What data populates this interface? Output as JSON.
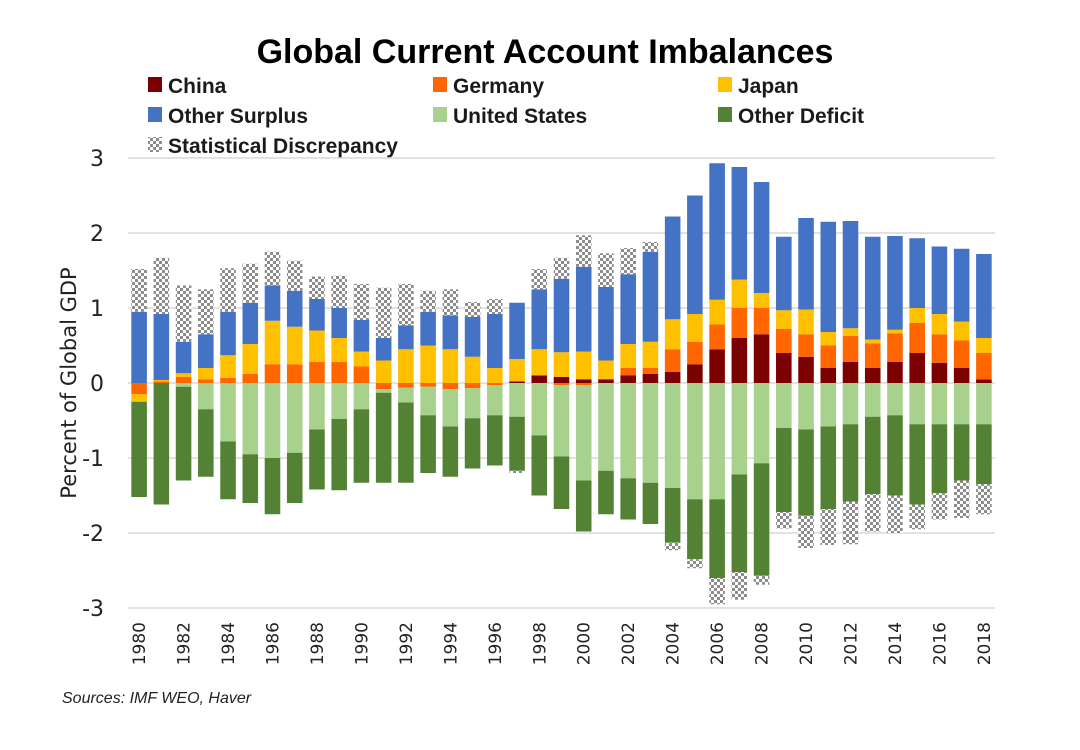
{
  "chart_data": {
    "type": "bar",
    "stacked": true,
    "title": "Global Current Account Imbalances",
    "xlabel": "",
    "ylabel": "Percent of Global GDP",
    "ylim": [
      -3,
      3
    ],
    "yticks": [
      3,
      2,
      1,
      0,
      -1,
      -2,
      -3
    ],
    "grid": true,
    "legend_position": "top",
    "source_note": "Sources: IMF WEO, Haver",
    "categories": [
      1980,
      1981,
      1982,
      1983,
      1984,
      1985,
      1986,
      1987,
      1988,
      1989,
      1990,
      1991,
      1992,
      1993,
      1994,
      1995,
      1996,
      1997,
      1998,
      1999,
      2000,
      2001,
      2002,
      2003,
      2004,
      2005,
      2006,
      2007,
      2008,
      2009,
      2010,
      2011,
      2012,
      2013,
      2014,
      2015,
      2016,
      2017,
      2018
    ],
    "xtick_labels": [
      "1980",
      "1982",
      "1984",
      "1986",
      "1988",
      "1990",
      "1992",
      "1994",
      "1996",
      "1998",
      "2000",
      "2002",
      "2004",
      "2006",
      "2008",
      "2010",
      "2012",
      "2014",
      "2016",
      "2018"
    ],
    "series": [
      {
        "name": "China",
        "color": "#7b0000",
        "values": [
          0,
          0,
          0,
          0,
          0,
          0,
          0,
          0,
          0,
          0,
          0,
          0,
          0,
          0,
          0,
          0,
          0,
          0.02,
          0.1,
          0.08,
          0.05,
          0.05,
          0.1,
          0.12,
          0.15,
          0.25,
          0.45,
          0.6,
          0.65,
          0.4,
          0.35,
          0.2,
          0.28,
          0.2,
          0.28,
          0.4,
          0.27,
          0.2,
          0.05
        ]
      },
      {
        "name": "Germany",
        "color": "#ff6600",
        "values": [
          -0.15,
          0.02,
          0.08,
          0.05,
          0.07,
          0.12,
          0.25,
          0.25,
          0.28,
          0.28,
          0.22,
          -0.08,
          -0.06,
          -0.05,
          -0.08,
          -0.07,
          -0.03,
          0,
          0,
          -0.03,
          -0.03,
          0,
          0.1,
          0.08,
          0.3,
          0.3,
          0.33,
          0.4,
          0.35,
          0.32,
          0.3,
          0.3,
          0.35,
          0.33,
          0.38,
          0.4,
          0.38,
          0.37,
          0.35
        ]
      },
      {
        "name": "Japan",
        "color": "#ffc000",
        "values": [
          -0.1,
          0.02,
          0.05,
          0.15,
          0.3,
          0.4,
          0.58,
          0.5,
          0.42,
          0.32,
          0.2,
          0.3,
          0.45,
          0.5,
          0.45,
          0.35,
          0.2,
          0.3,
          0.35,
          0.33,
          0.37,
          0.25,
          0.32,
          0.35,
          0.4,
          0.37,
          0.33,
          0.38,
          0.2,
          0.25,
          0.33,
          0.18,
          0.1,
          0.05,
          0.05,
          0.2,
          0.27,
          0.25,
          0.2
        ]
      },
      {
        "name": "Other Surplus",
        "color": "#4472c4",
        "values": [
          0.95,
          0.88,
          0.42,
          0.45,
          0.58,
          0.55,
          0.47,
          0.48,
          0.42,
          0.4,
          0.42,
          0.3,
          0.32,
          0.45,
          0.45,
          0.53,
          0.72,
          0.75,
          0.8,
          0.98,
          1.13,
          0.98,
          0.93,
          1.2,
          1.37,
          1.58,
          1.82,
          1.5,
          1.48,
          0.98,
          1.22,
          1.47,
          1.43,
          1.37,
          1.25,
          0.93,
          0.9,
          0.97,
          1.12
        ]
      },
      {
        "name": "United States",
        "color": "#a9d18e",
        "values": [
          0,
          0,
          -0.05,
          -0.35,
          -0.78,
          -0.95,
          -1.0,
          -0.93,
          -0.62,
          -0.48,
          -0.35,
          -0.05,
          -0.2,
          -0.38,
          -0.5,
          -0.4,
          -0.4,
          -0.45,
          -0.7,
          -0.95,
          -1.27,
          -1.17,
          -1.27,
          -1.33,
          -1.4,
          -1.55,
          -1.55,
          -1.22,
          -1.07,
          -0.6,
          -0.62,
          -0.58,
          -0.55,
          -0.45,
          -0.43,
          -0.55,
          -0.55,
          -0.55,
          -0.55
        ]
      },
      {
        "name": "Other Deficit",
        "color": "#548235",
        "values": [
          -1.27,
          -1.62,
          -1.25,
          -0.9,
          -0.77,
          -0.65,
          -0.75,
          -0.67,
          -0.8,
          -0.95,
          -0.98,
          -1.2,
          -1.07,
          -0.77,
          -0.67,
          -0.67,
          -0.67,
          -0.72,
          -0.8,
          -0.7,
          -0.68,
          -0.58,
          -0.55,
          -0.55,
          -0.73,
          -0.8,
          -1.05,
          -1.3,
          -1.5,
          -1.12,
          -1.15,
          -1.1,
          -1.03,
          -1.03,
          -1.07,
          -1.07,
          -0.92,
          -0.75,
          -0.8
        ]
      },
      {
        "name": "Statistical Discrepancy",
        "color": "#808080",
        "pattern": "checker",
        "values_positive": [
          0.57,
          0.75,
          0.75,
          0.6,
          0.58,
          0.52,
          0.45,
          0.4,
          0.3,
          0.43,
          0.48,
          0.67,
          0.55,
          0.28,
          0.35,
          0.2,
          0.2,
          0,
          0.27,
          0.28,
          0.42,
          0.45,
          0.35,
          0.13,
          0,
          0,
          0,
          0,
          0,
          0,
          0,
          0,
          0,
          0,
          0,
          0,
          0,
          0,
          0
        ],
        "values_negative": [
          0,
          0,
          0,
          0,
          0,
          0,
          0,
          0,
          0,
          0,
          0,
          0,
          0,
          0,
          0,
          0,
          0,
          -0.03,
          0,
          0,
          0,
          0,
          0,
          0,
          -0.1,
          -0.12,
          -0.35,
          -0.37,
          -0.12,
          -0.22,
          -0.43,
          -0.48,
          -0.57,
          -0.5,
          -0.5,
          -0.33,
          -0.35,
          -0.5,
          -0.4
        ]
      }
    ]
  }
}
